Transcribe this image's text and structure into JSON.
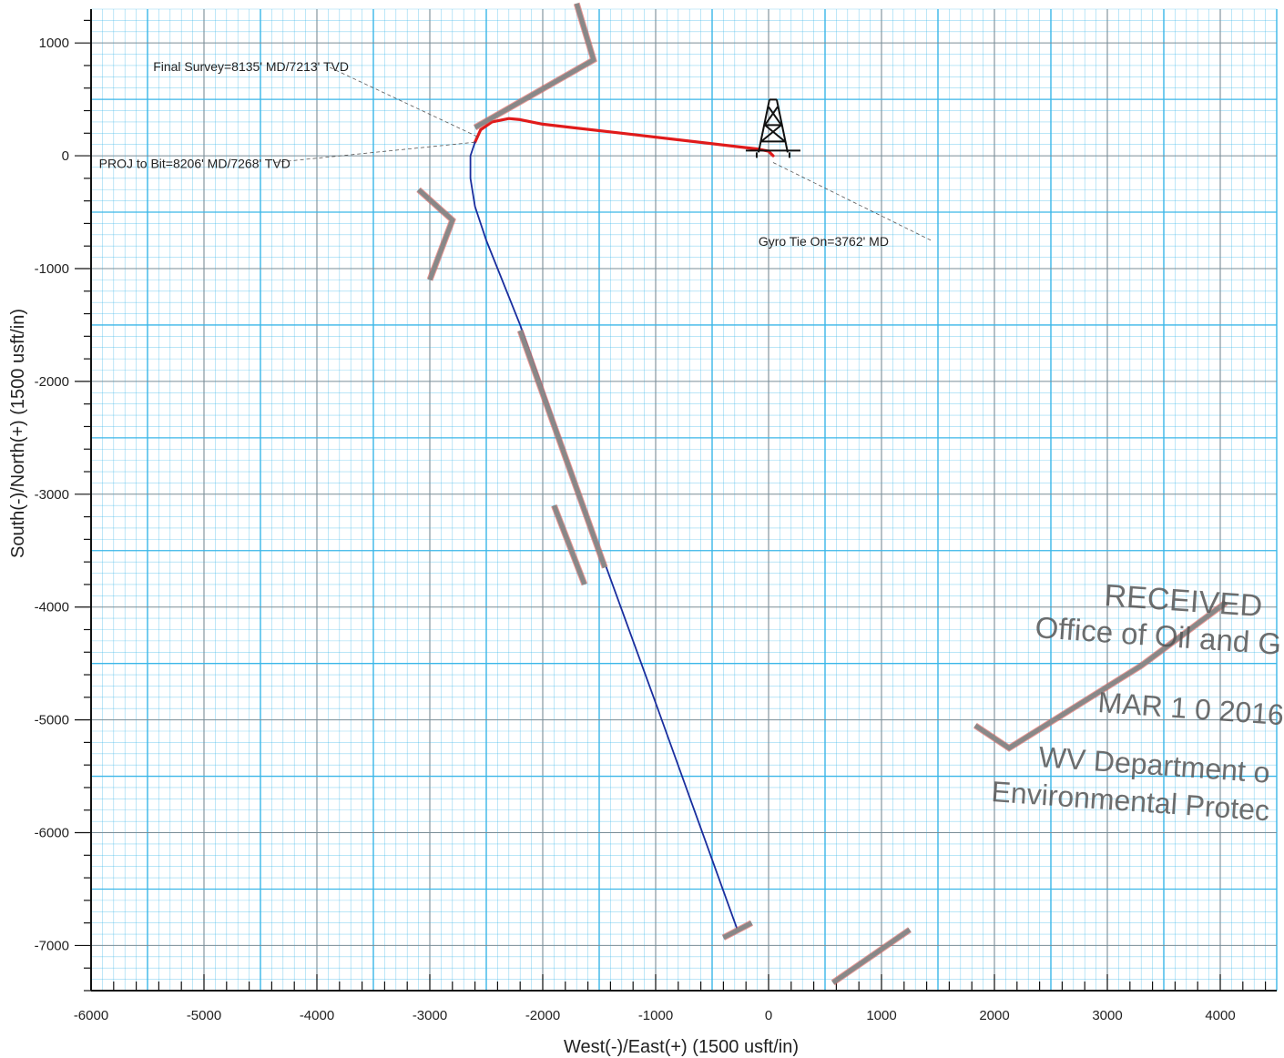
{
  "chart_data": {
    "type": "line",
    "title": "",
    "xlabel": "West(-)/East(+) (1500 usft/in)",
    "ylabel": "South(-)/North(+) (1500 usft/in)",
    "xlim": [
      -6000,
      4500
    ],
    "ylim": [
      -7400,
      1300
    ],
    "x_ticks": [
      -6000,
      -5000,
      -4000,
      -3000,
      -2000,
      -1000,
      0,
      1000,
      2000,
      3000,
      4000
    ],
    "y_ticks": [
      1000,
      0,
      -1000,
      -2000,
      -3000,
      -4000,
      -5000,
      -6000,
      -7000
    ],
    "x_tick_labels": [
      "-6000",
      "-5000",
      "-4000",
      "-3000",
      "-2000",
      "-1000",
      "0",
      "1000",
      "2000",
      "3000",
      "4000"
    ],
    "y_tick_labels": [
      "1000",
      "0",
      "-1000",
      "-2000",
      "-3000",
      "-4000",
      "-5000",
      "-6000",
      "-7000"
    ],
    "grid": true,
    "grid_color": "#3ab6e8",
    "series": [
      {
        "color": "#e01b1b",
        "x": [
          40,
          0,
          -100,
          -1300,
          -2000,
          -2200,
          -2300,
          -2450,
          -2550,
          -2600
        ],
        "y": [
          0,
          40,
          60,
          200,
          280,
          320,
          330,
          300,
          230,
          120
        ]
      },
      {
        "color": "#1a2e9e",
        "x": [
          -2600,
          -2640,
          -2640,
          -2600,
          -2500,
          -2200,
          -1600,
          -1000,
          -280
        ],
        "y": [
          120,
          0,
          -200,
          -450,
          -750,
          -1500,
          -3200,
          -4850,
          -6850
        ]
      },
      {
        "color": "#888888",
        "x": [
          -2600,
          -1550,
          -1700
        ],
        "y": [
          250,
          850,
          1350
        ]
      },
      {
        "color": "#888888",
        "x": [
          -3100,
          -2800,
          -3000
        ],
        "y": [
          -300,
          -570,
          -1100
        ]
      },
      {
        "color": "#888888",
        "x": [
          -2200,
          -1450
        ],
        "y": [
          -1550,
          -3650
        ]
      },
      {
        "color": "#888888",
        "x": [
          -1900,
          -1630
        ],
        "y": [
          -3100,
          -3800
        ]
      },
      {
        "color": "#888888",
        "x": [
          -400,
          -150
        ],
        "y": [
          -6930,
          -6800
        ]
      },
      {
        "color": "#888888",
        "x": [
          570,
          1250
        ],
        "y": [
          -7330,
          -6860
        ]
      },
      {
        "color": "#888888",
        "x": [
          1830,
          2130,
          3300,
          4050
        ],
        "y": [
          -5050,
          -5250,
          -4520,
          -3960
        ]
      }
    ],
    "annotations": [
      {
        "text": "Final Survey=8135' MD/7213' TVD",
        "point": [
          -2580,
          170
        ],
        "label_at": [
          -5450,
          750
        ],
        "anchor": "start"
      },
      {
        "text": "PROJ to Bit=8206' MD/7268' TVD",
        "point": [
          -2600,
          120
        ],
        "label_at": [
          -5930,
          -110
        ],
        "anchor": "start"
      },
      {
        "text": "Gyro Tie On=3762' MD",
        "point": [
          40,
          -60
        ],
        "label_at": [
          -90,
          -800
        ],
        "anchor": "start"
      }
    ],
    "rig_symbol_at": [
      40,
      30
    ]
  },
  "stamp": {
    "line1": "RECEIVED",
    "line2": "Office of Oil and G",
    "line3": "MAR 1 0 2016",
    "line4": "WV Department o",
    "line5": "Environmental Protec"
  }
}
